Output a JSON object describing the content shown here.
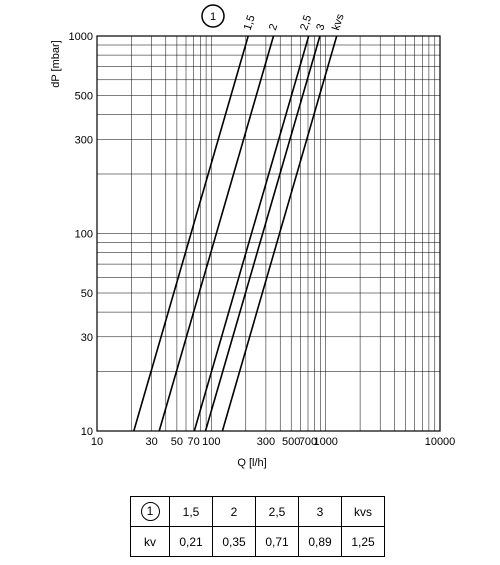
{
  "chart_data": {
    "type": "line",
    "title": "",
    "xlabel": "Q [l/h]",
    "ylabel": "dP [mbar]",
    "xscale": "log",
    "yscale": "log",
    "xlim": [
      10,
      10000
    ],
    "ylim": [
      10,
      1000
    ],
    "x_tick_labels": [
      "10",
      "30",
      "50",
      "70",
      "100",
      "300",
      "500",
      "700",
      "1000",
      "10000"
    ],
    "y_tick_labels": [
      "10",
      "30",
      "50",
      "100",
      "300",
      "500",
      "1000"
    ],
    "grid": true,
    "marker_label": "1",
    "series": [
      {
        "name": "1,5",
        "kv": 0.21,
        "x": [
          21,
          210
        ],
        "y": [
          10,
          1000
        ]
      },
      {
        "name": "2",
        "kv": 0.35,
        "x": [
          35,
          350
        ],
        "y": [
          10,
          1000
        ]
      },
      {
        "name": "2,5",
        "kv": 0.71,
        "x": [
          71,
          710
        ],
        "y": [
          10,
          1000
        ]
      },
      {
        "name": "3",
        "kv": 0.89,
        "x": [
          89,
          890
        ],
        "y": [
          10,
          1000
        ]
      },
      {
        "name": "kvs",
        "kv": 1.25,
        "x": [
          125,
          1250
        ],
        "y": [
          10,
          1000
        ]
      }
    ]
  },
  "table": {
    "header": {
      "marker": "1",
      "values": [
        "1,5",
        "2",
        "2,5",
        "3",
        "kvs"
      ]
    },
    "row": {
      "label": "kv",
      "values": [
        "0,21",
        "0,35",
        "0,71",
        "0,89",
        "1,25"
      ]
    }
  }
}
